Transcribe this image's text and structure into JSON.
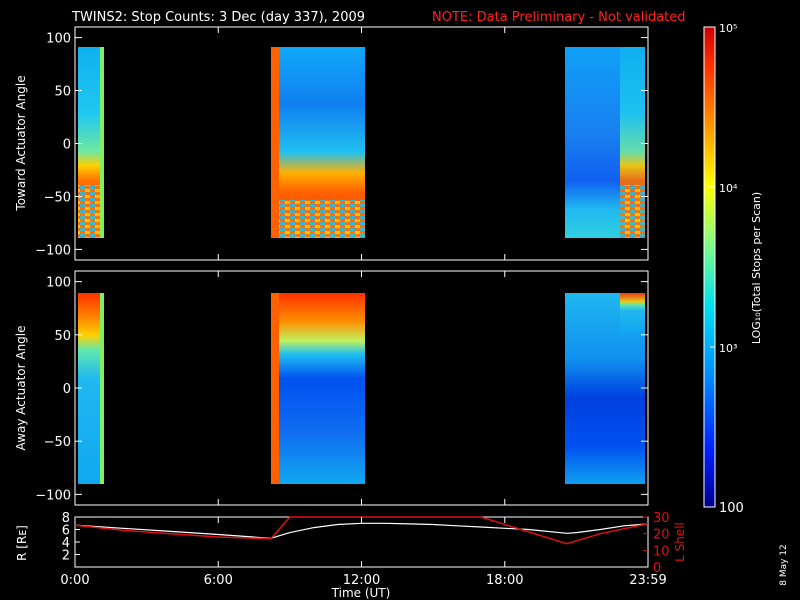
{
  "header": {
    "title": "TWINS2: Stop Counts:  3 Dec (day 337), 2009",
    "note": "NOTE: Data Preliminary - Not validated"
  },
  "colors": {
    "background": "#000000",
    "axes": "#ffffff",
    "note": "#ff2020",
    "r_line": "#ffffff",
    "lshell_line": "#e01010"
  },
  "colorbar": {
    "label": "LOG₁₀(Total Stops per Scan)",
    "tick_labels": [
      "100",
      "10³",
      "10⁴",
      "10⁵"
    ],
    "tick_values": [
      100,
      1000,
      10000,
      100000
    ],
    "range": [
      100,
      100000
    ],
    "scale": "log"
  },
  "footer": {
    "date_stamp": "8 May 12"
  },
  "chart_data": [
    {
      "type": "heatmap",
      "title": "",
      "ylabel": "Toward Actuator Angle",
      "xlabel": "",
      "xlim": [
        0,
        24
      ],
      "ylim": [
        -110,
        110
      ],
      "yticks": [
        -100,
        -50,
        0,
        50,
        100
      ],
      "ytick_labels": [
        "−100",
        "−50",
        "0",
        "50",
        "100"
      ],
      "data_ranges": [
        {
          "start": "0:00",
          "end": "1:00",
          "angle_range": [
            -88,
            90
          ]
        },
        {
          "start": "8:15",
          "end": "12:05",
          "angle_range": [
            -88,
            90
          ]
        },
        {
          "start": "20:45",
          "end": "23:59",
          "angle_range": [
            -88,
            90
          ]
        }
      ],
      "description_level": "low counts (blue-cyan, ~10^3) at positive angles; high counts (orange-red, ~10^4-10^5) near -20 to -90"
    },
    {
      "type": "heatmap",
      "title": "",
      "ylabel": "Away Actuator Angle",
      "xlabel": "",
      "xlim": [
        0,
        24
      ],
      "ylim": [
        -110,
        110
      ],
      "yticks": [
        -100,
        -50,
        0,
        50,
        100
      ],
      "ytick_labels": [
        "−100",
        "−50",
        "0",
        "50",
        "100"
      ],
      "data_ranges": [
        {
          "start": "0:00",
          "end": "1:00",
          "angle_range": [
            -88,
            90
          ]
        },
        {
          "start": "8:15",
          "end": "12:05",
          "angle_range": [
            -88,
            90
          ]
        },
        {
          "start": "20:45",
          "end": "23:59",
          "angle_range": [
            -88,
            90
          ]
        }
      ],
      "description_level": "high counts (orange-red) near +60 to +90; low counts (blue) at middle and negative angles"
    },
    {
      "type": "line",
      "xlabel": "Time (UT)",
      "ylabel": "R [Rᴇ]",
      "y2label": "L Shell",
      "xlim": [
        0,
        24
      ],
      "ylim": [
        0,
        8
      ],
      "y2lim": [
        0,
        30
      ],
      "xticks": [
        "0:00",
        "6:00",
        "12:00",
        "18:00",
        "23:59"
      ],
      "yticks": [
        "2",
        "4",
        "6",
        "8"
      ],
      "y2ticks": [
        "10",
        "20",
        "30"
      ],
      "series": [
        {
          "x": [
            0,
            2,
            4,
            6,
            8.2,
            9,
            10,
            11,
            12,
            13,
            14,
            15,
            16,
            17,
            18,
            19,
            20.6,
            21,
            22,
            23,
            24
          ],
          "values": [
            6.7,
            6.2,
            5.7,
            5.2,
            4.6,
            5.5,
            6.3,
            6.8,
            7.0,
            7.0,
            6.9,
            6.8,
            6.6,
            6.4,
            6.2,
            6.0,
            5.4,
            5.5,
            6.0,
            6.6,
            6.9
          ]
        },
        {
          "axis": "right",
          "x": [
            0,
            2,
            4,
            6,
            8.2,
            9.0,
            17.0,
            20.6,
            22,
            24
          ],
          "values": [
            25,
            22,
            20,
            18,
            17,
            30,
            30,
            14,
            20,
            26
          ]
        }
      ]
    }
  ]
}
